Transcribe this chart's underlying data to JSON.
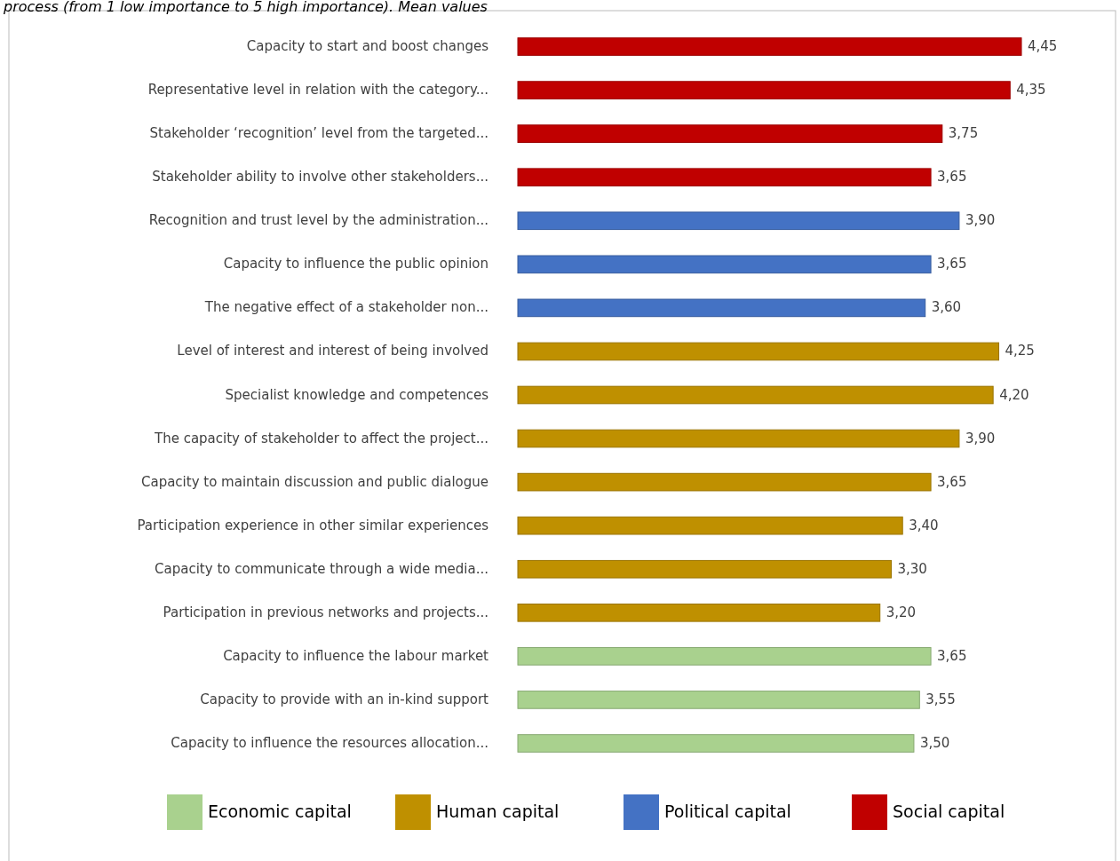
{
  "chart_data": {
    "type": "bar",
    "orientation": "horizontal",
    "title": "process (from 1 low importance to 5 high importance). Mean values",
    "categories": [
      "Capacity to start and boost changes",
      "Representative level in relation with the category...",
      "Stakeholder ‘recognition’ level from the targeted...",
      "Stakeholder ability to involve other stakeholders...",
      "Recognition and trust level by the administration...",
      "Capacity to influence the public opinion",
      "The negative effect of a stakeholder non...",
      "Level of interest and interest of being involved",
      "Specialist knowledge and competences",
      "The capacity of stakeholder to affect the project...",
      "Capacity to maintain discussion and public dialogue",
      "Participation experience in other similar experiences",
      "Capacity to communicate through a wide media...",
      "Participation in previous networks and projects...",
      "Capacity to influence the labour market",
      "Capacity to provide with an in-kind support",
      "Capacity to influence the resources allocation..."
    ],
    "series": [
      {
        "name": "Economic capital",
        "color": "#a9d18e",
        "values": [
          null,
          null,
          null,
          null,
          null,
          null,
          null,
          null,
          null,
          null,
          null,
          null,
          null,
          null,
          3.65,
          3.55,
          3.5
        ],
        "value_labels": [
          null,
          null,
          null,
          null,
          null,
          null,
          null,
          null,
          null,
          null,
          null,
          null,
          null,
          null,
          "3,65",
          "3,55",
          "3,50"
        ]
      },
      {
        "name": "Human capital",
        "color": "#bf9000",
        "values": [
          null,
          null,
          null,
          null,
          null,
          null,
          null,
          4.25,
          4.2,
          3.9,
          3.65,
          3.4,
          3.3,
          3.2,
          null,
          null,
          null
        ],
        "value_labels": [
          null,
          null,
          null,
          null,
          null,
          null,
          null,
          "4,25",
          "4,20",
          "3,90",
          "3,65",
          "3,40",
          "3,30",
          "3,20",
          null,
          null,
          null
        ]
      },
      {
        "name": "Political capital",
        "color": "#4472c4",
        "values": [
          null,
          null,
          null,
          null,
          3.9,
          3.65,
          3.6,
          null,
          null,
          null,
          null,
          null,
          null,
          null,
          null,
          null,
          null
        ],
        "value_labels": [
          null,
          null,
          null,
          null,
          "3,90",
          "3,65",
          "3,60",
          null,
          null,
          null,
          null,
          null,
          null,
          null,
          null,
          null,
          null
        ]
      },
      {
        "name": "Social capital",
        "color": "#c00000",
        "values": [
          4.45,
          4.35,
          3.75,
          3.65,
          null,
          null,
          null,
          null,
          null,
          null,
          null,
          null,
          null,
          null,
          null,
          null,
          null
        ],
        "value_labels": [
          "4,45",
          "4,35",
          "3,75",
          "3,65",
          null,
          null,
          null,
          null,
          null,
          null,
          null,
          null,
          null,
          null,
          null,
          null,
          null
        ]
      }
    ],
    "tick_labels": "y",
    "legend": "bottom"
  }
}
